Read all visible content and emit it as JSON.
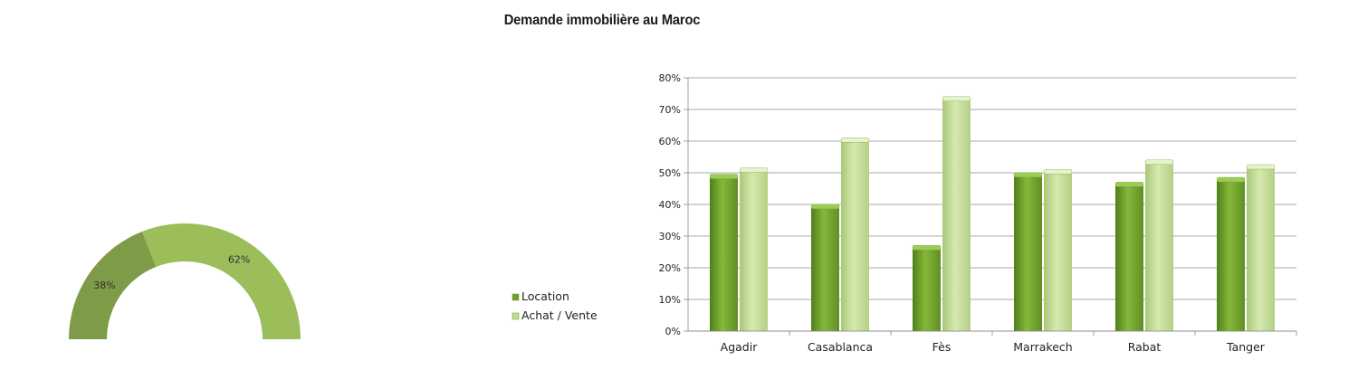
{
  "title": "Demande immobilière au Maroc",
  "colors": {
    "location": "#6fa02a",
    "achat": "#c2dc8e",
    "donut_a": "#7e9b47",
    "donut_b": "#9bbd5a"
  },
  "chart_data": [
    {
      "type": "pie",
      "variant": "half-donut",
      "labels": [
        "Location",
        "Achat / Vente"
      ],
      "values": [
        38,
        62
      ],
      "data_labels": [
        "38%",
        "62%"
      ]
    },
    {
      "type": "bar",
      "categories": [
        "Agadir",
        "Casablanca",
        "Fès",
        "Marrakech",
        "Rabat",
        "Tanger"
      ],
      "series": [
        {
          "name": "Location",
          "values": [
            49,
            39.5,
            26.5,
            49.5,
            46.5,
            48
          ]
        },
        {
          "name": "Achat / Vente",
          "values": [
            51,
            60.5,
            73.5,
            50.5,
            53.5,
            52
          ]
        }
      ],
      "ylim": [
        0,
        80
      ],
      "yticks": [
        "0%",
        "10%",
        "20%",
        "30%",
        "40%",
        "50%",
        "60%",
        "70%",
        "80%"
      ],
      "grid": true,
      "legend_position": "left"
    }
  ]
}
